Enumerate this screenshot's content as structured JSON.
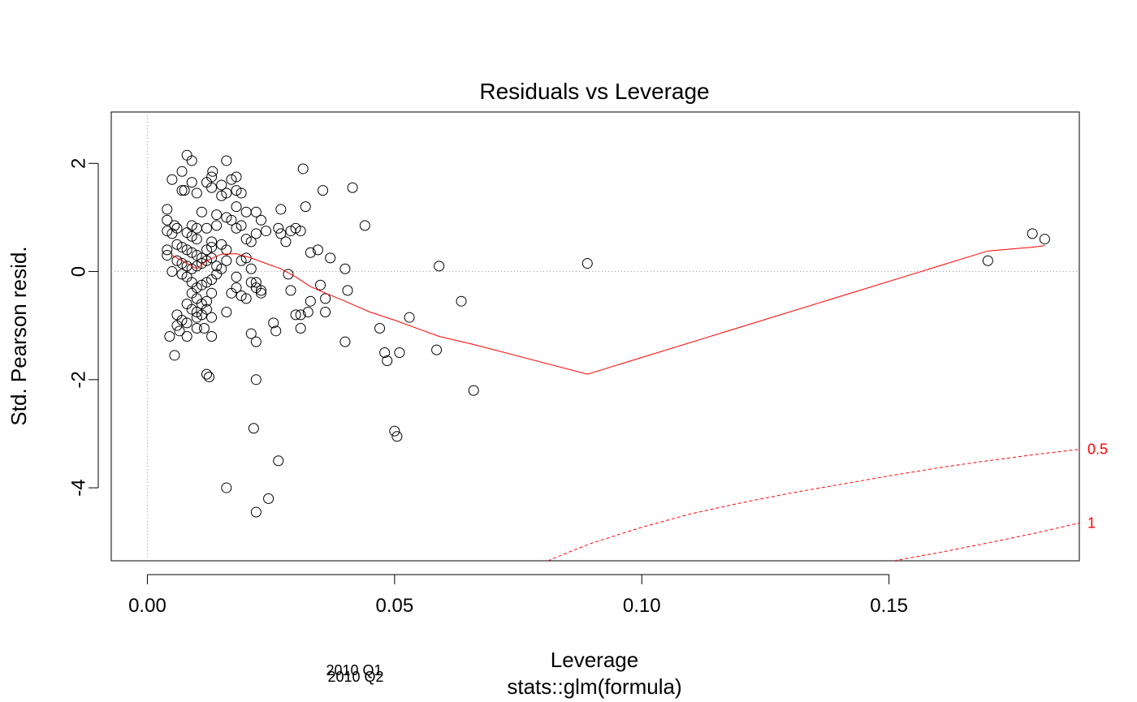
{
  "chart_data": {
    "type": "scatter",
    "title": "Residuals vs Leverage",
    "xlabel": "Leverage",
    "ylabel": "Std. Pearson resid.",
    "subtitle": "stats::glm(formula)",
    "xlim": [
      -0.0073,
      0.1885
    ],
    "ylim": [
      -5.35,
      2.95
    ],
    "x_ticks": [
      {
        "value": 0.0,
        "label": "0.00"
      },
      {
        "value": 0.05,
        "label": "0.05"
      },
      {
        "value": 0.1,
        "label": "0.10"
      },
      {
        "value": 0.15,
        "label": "0.15"
      }
    ],
    "y_ticks": [
      {
        "value": 2,
        "label": "2"
      },
      {
        "value": 0,
        "label": "0"
      },
      {
        "value": -2,
        "label": "-2"
      },
      {
        "value": -4,
        "label": "-4"
      }
    ],
    "reference_lines": [
      {
        "axis": "y",
        "value": 0,
        "style": "dotted",
        "color": "#999999"
      },
      {
        "axis": "x",
        "value": 0,
        "style": "dotted",
        "color": "#999999"
      }
    ],
    "point_labels": [
      {
        "text": "2010 Q1"
      },
      {
        "text": "2010 Q2"
      }
    ],
    "series": [
      {
        "style": "points",
        "color": "#000000",
        "points": [
          [
            0.008,
            2.15
          ],
          [
            0.009,
            2.05
          ],
          [
            0.016,
            2.05
          ],
          [
            0.0132,
            1.85
          ],
          [
            0.013,
            1.75
          ],
          [
            0.017,
            1.7
          ],
          [
            0.009,
            1.65
          ],
          [
            0.012,
            1.65
          ],
          [
            0.015,
            1.6
          ],
          [
            0.013,
            1.55
          ],
          [
            0.007,
            1.5
          ],
          [
            0.01,
            1.45
          ],
          [
            0.016,
            1.45
          ],
          [
            0.018,
            1.5
          ],
          [
            0.019,
            1.45
          ],
          [
            0.007,
            1.85
          ],
          [
            0.005,
            1.7
          ],
          [
            0.0075,
            1.5
          ],
          [
            0.018,
            1.75
          ],
          [
            0.015,
            1.4
          ],
          [
            0.004,
            1.15
          ],
          [
            0.011,
            1.1
          ],
          [
            0.014,
            1.05
          ],
          [
            0.016,
            1.0
          ],
          [
            0.018,
            1.2
          ],
          [
            0.02,
            1.1
          ],
          [
            0.022,
            1.1
          ],
          [
            0.023,
            0.95
          ],
          [
            0.017,
            0.95
          ],
          [
            0.019,
            0.85
          ],
          [
            0.004,
            0.95
          ],
          [
            0.0055,
            0.85
          ],
          [
            0.006,
            0.8
          ],
          [
            0.009,
            0.85
          ],
          [
            0.01,
            0.8
          ],
          [
            0.012,
            0.8
          ],
          [
            0.014,
            0.85
          ],
          [
            0.018,
            0.8
          ],
          [
            0.004,
            0.75
          ],
          [
            0.005,
            0.7
          ],
          [
            0.008,
            0.72
          ],
          [
            0.009,
            0.65
          ],
          [
            0.01,
            0.6
          ],
          [
            0.013,
            0.55
          ],
          [
            0.015,
            0.5
          ],
          [
            0.004,
            0.4
          ],
          [
            0.004,
            0.3
          ],
          [
            0.006,
            0.5
          ],
          [
            0.007,
            0.45
          ],
          [
            0.008,
            0.4
          ],
          [
            0.009,
            0.35
          ],
          [
            0.01,
            0.3
          ],
          [
            0.011,
            0.25
          ],
          [
            0.012,
            0.4
          ],
          [
            0.013,
            0.45
          ],
          [
            0.006,
            0.2
          ],
          [
            0.007,
            0.15
          ],
          [
            0.008,
            0.1
          ],
          [
            0.009,
            0.05
          ],
          [
            0.01,
            0.1
          ],
          [
            0.011,
            0.15
          ],
          [
            0.012,
            0.2
          ],
          [
            0.013,
            0.25
          ],
          [
            0.014,
            0.1
          ],
          [
            0.016,
            0.2
          ],
          [
            0.005,
            0.0
          ],
          [
            0.007,
            -0.05
          ],
          [
            0.008,
            -0.1
          ],
          [
            0.009,
            -0.2
          ],
          [
            0.01,
            -0.3
          ],
          [
            0.011,
            -0.25
          ],
          [
            0.012,
            -0.2
          ],
          [
            0.013,
            -0.15
          ],
          [
            0.014,
            -0.05
          ],
          [
            0.015,
            0.05
          ],
          [
            0.009,
            -0.4
          ],
          [
            0.01,
            -0.5
          ],
          [
            0.011,
            -0.6
          ],
          [
            0.012,
            -0.55
          ],
          [
            0.013,
            -0.4
          ],
          [
            0.008,
            -0.6
          ],
          [
            0.009,
            -0.7
          ],
          [
            0.01,
            -0.75
          ],
          [
            0.011,
            -0.8
          ],
          [
            0.012,
            -0.7
          ],
          [
            0.006,
            -0.8
          ],
          [
            0.007,
            -0.9
          ],
          [
            0.008,
            -0.95
          ],
          [
            0.01,
            -0.85
          ],
          [
            0.013,
            -0.85
          ],
          [
            0.006,
            -1.0
          ],
          [
            0.0065,
            -1.1
          ],
          [
            0.008,
            -1.2
          ],
          [
            0.01,
            -1.05
          ],
          [
            0.0115,
            -1.05
          ],
          [
            0.0045,
            -1.2
          ],
          [
            0.013,
            -1.2
          ],
          [
            0.0055,
            -1.55
          ],
          [
            0.012,
            -1.9
          ],
          [
            0.0125,
            -1.95
          ],
          [
            0.016,
            -0.75
          ],
          [
            0.017,
            -0.4
          ],
          [
            0.018,
            -0.3
          ],
          [
            0.019,
            -0.45
          ],
          [
            0.02,
            -0.5
          ],
          [
            0.021,
            -0.2
          ],
          [
            0.022,
            -0.3
          ],
          [
            0.023,
            -0.35
          ],
          [
            0.018,
            -0.1
          ],
          [
            0.016,
            0.4
          ],
          [
            0.02,
            0.6
          ],
          [
            0.021,
            0.55
          ],
          [
            0.022,
            0.7
          ],
          [
            0.024,
            0.75
          ],
          [
            0.019,
            0.2
          ],
          [
            0.02,
            0.25
          ],
          [
            0.021,
            0.05
          ],
          [
            0.022,
            -0.2
          ],
          [
            0.023,
            -0.4
          ],
          [
            0.021,
            -1.15
          ],
          [
            0.022,
            -1.3
          ],
          [
            0.022,
            -2.0
          ],
          [
            0.0215,
            -2.9
          ],
          [
            0.016,
            -4.0
          ],
          [
            0.022,
            -4.45
          ],
          [
            0.0245,
            -4.2
          ],
          [
            0.0265,
            -3.5
          ],
          [
            0.026,
            -1.1
          ],
          [
            0.0255,
            -0.95
          ],
          [
            0.0265,
            0.8
          ],
          [
            0.027,
            0.7
          ],
          [
            0.027,
            1.15
          ],
          [
            0.028,
            0.55
          ],
          [
            0.029,
            0.75
          ],
          [
            0.03,
            0.8
          ],
          [
            0.031,
            0.75
          ],
          [
            0.032,
            1.2
          ],
          [
            0.0315,
            1.9
          ],
          [
            0.0285,
            -0.05
          ],
          [
            0.029,
            -0.35
          ],
          [
            0.03,
            -0.8
          ],
          [
            0.031,
            -0.8
          ],
          [
            0.031,
            -1.05
          ],
          [
            0.033,
            -0.55
          ],
          [
            0.0325,
            -0.75
          ],
          [
            0.033,
            0.35
          ],
          [
            0.0345,
            0.4
          ],
          [
            0.035,
            -0.25
          ],
          [
            0.036,
            -0.5
          ],
          [
            0.036,
            -0.75
          ],
          [
            0.037,
            0.25
          ],
          [
            0.0355,
            1.5
          ],
          [
            0.04,
            0.05
          ],
          [
            0.0405,
            -0.35
          ],
          [
            0.04,
            -1.3
          ],
          [
            0.0415,
            1.55
          ],
          [
            0.044,
            0.85
          ],
          [
            0.047,
            -1.05
          ],
          [
            0.048,
            -1.5
          ],
          [
            0.0485,
            -1.65
          ],
          [
            0.05,
            -2.95
          ],
          [
            0.0505,
            -3.05
          ],
          [
            0.051,
            -1.5
          ],
          [
            0.053,
            -0.85
          ],
          [
            0.0585,
            -1.45
          ],
          [
            0.059,
            0.1
          ],
          [
            0.0635,
            -0.55
          ],
          [
            0.066,
            -2.2
          ],
          [
            0.089,
            0.15
          ],
          [
            0.17,
            0.2
          ],
          [
            0.179,
            0.7
          ],
          [
            0.1815,
            0.6
          ]
        ]
      },
      {
        "style": "line",
        "color": "#ff0000",
        "points": [
          [
            0.005,
            0.3
          ],
          [
            0.008,
            0.15
          ],
          [
            0.01,
            0.05
          ],
          [
            0.012,
            0.2
          ],
          [
            0.015,
            0.32
          ],
          [
            0.018,
            0.33
          ],
          [
            0.021,
            0.25
          ],
          [
            0.024,
            0.15
          ],
          [
            0.027,
            0.05
          ],
          [
            0.03,
            -0.1
          ],
          [
            0.033,
            -0.28
          ],
          [
            0.036,
            -0.4
          ],
          [
            0.04,
            -0.55
          ],
          [
            0.045,
            -0.75
          ],
          [
            0.05,
            -0.9
          ],
          [
            0.053,
            -1.0
          ],
          [
            0.059,
            -1.2
          ],
          [
            0.066,
            -1.35
          ],
          [
            0.089,
            -1.9
          ],
          [
            0.17,
            0.38
          ],
          [
            0.179,
            0.45
          ],
          [
            0.1815,
            0.48
          ]
        ]
      },
      {
        "name": "0.5",
        "style": "dashed",
        "color": "#ff0000",
        "points": [
          [
            0.081,
            -5.35
          ],
          [
            0.085,
            -5.2
          ],
          [
            0.09,
            -5.02
          ],
          [
            0.1,
            -4.73
          ],
          [
            0.11,
            -4.48
          ],
          [
            0.12,
            -4.28
          ],
          [
            0.13,
            -4.1
          ],
          [
            0.14,
            -3.94
          ],
          [
            0.15,
            -3.78
          ],
          [
            0.16,
            -3.63
          ],
          [
            0.17,
            -3.5
          ],
          [
            0.18,
            -3.38
          ],
          [
            0.1885,
            -3.29
          ]
        ]
      },
      {
        "name": "1",
        "style": "dashed",
        "color": "#ff0000",
        "points": [
          [
            0.151,
            -5.35
          ],
          [
            0.16,
            -5.2
          ],
          [
            0.17,
            -5.02
          ],
          [
            0.18,
            -4.83
          ],
          [
            0.1885,
            -4.65
          ]
        ]
      }
    ]
  }
}
